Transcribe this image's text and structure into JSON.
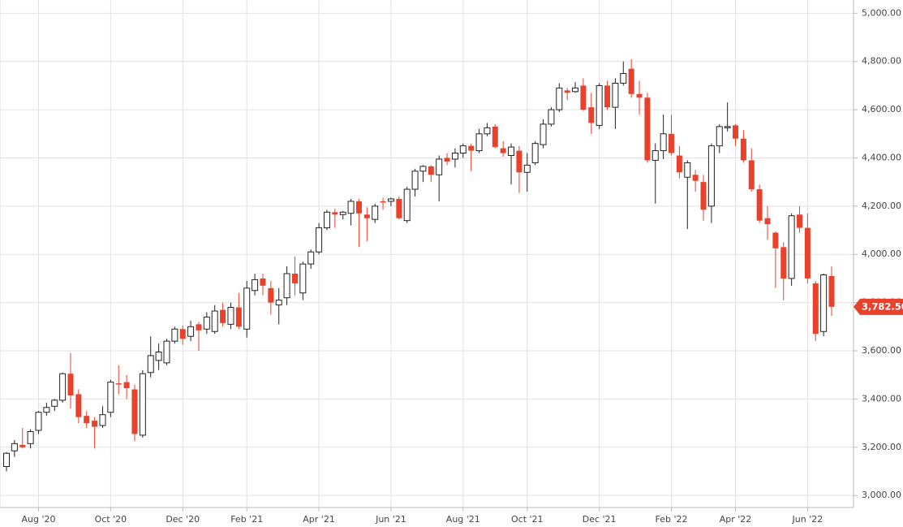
{
  "chart_data": {
    "type": "candlestick",
    "categories": [
      null,
      null,
      null,
      null,
      "Aug '20",
      null,
      null,
      null,
      null,
      null,
      null,
      null,
      null,
      "Oct '20",
      null,
      null,
      null,
      null,
      null,
      null,
      null,
      null,
      "Dec '20",
      null,
      null,
      null,
      null,
      null,
      null,
      null,
      "Feb '21",
      null,
      null,
      null,
      null,
      null,
      null,
      null,
      null,
      "Apr '21",
      null,
      null,
      null,
      null,
      null,
      null,
      null,
      null,
      "Jun '21",
      null,
      null,
      null,
      null,
      null,
      null,
      null,
      null,
      "Aug '21",
      null,
      null,
      null,
      null,
      null,
      null,
      null,
      "Oct '21",
      null,
      null,
      null,
      null,
      null,
      null,
      null,
      null,
      "Dec '21",
      null,
      null,
      null,
      null,
      null,
      null,
      null,
      null,
      "Feb '22",
      null,
      null,
      null,
      null,
      null,
      null,
      null,
      "Apr '22",
      null,
      null,
      null,
      null,
      null,
      null,
      null,
      null,
      "Jun '22",
      null,
      null,
      null
    ],
    "open": [
      3120,
      3185,
      3210,
      3215,
      3270,
      3345,
      3370,
      3395,
      3505,
      3420,
      3330,
      3310,
      3290,
      3345,
      3465,
      3470,
      3440,
      3250,
      3510,
      3560,
      3550,
      3640,
      3690,
      3660,
      3710,
      3690,
      3680,
      3770,
      3710,
      3780,
      3690,
      3850,
      3900,
      3860,
      3790,
      3820,
      3920,
      3840,
      3960,
      4010,
      4110,
      4175,
      4165,
      4170,
      4220,
      4165,
      4145,
      4220,
      4220,
      4230,
      4140,
      4270,
      4345,
      4365,
      4330,
      4400,
      4395,
      4420,
      4450,
      4430,
      4500,
      4530,
      4440,
      4410,
      4430,
      4340,
      4380,
      4455,
      4540,
      4600,
      4680,
      4675,
      4700,
      4610,
      4535,
      4700,
      4610,
      4710,
      4770,
      4665,
      4650,
      4390,
      4430,
      4500,
      4410,
      4320,
      4330,
      4300,
      4200,
      4450,
      4525,
      4535,
      4480,
      4390,
      4270,
      4150,
      4090,
      4030,
      3900,
      4165,
      4110,
      3880,
      3680,
      3910
    ],
    "high": [
      3180,
      3230,
      3280,
      3275,
      3350,
      3385,
      3400,
      3510,
      3590,
      3440,
      3350,
      3325,
      3370,
      3480,
      3540,
      3500,
      3460,
      3520,
      3660,
      3630,
      3650,
      3700,
      3705,
      3725,
      3720,
      3760,
      3790,
      3800,
      3800,
      3840,
      3890,
      3920,
      3920,
      3890,
      3860,
      3950,
      3990,
      3970,
      4020,
      4130,
      4185,
      4190,
      4180,
      4230,
      4230,
      4195,
      4210,
      4235,
      4235,
      4240,
      4280,
      4355,
      4370,
      4370,
      4410,
      4420,
      4440,
      4460,
      4460,
      4520,
      4545,
      4540,
      4470,
      4460,
      4450,
      4420,
      4470,
      4560,
      4610,
      4710,
      4690,
      4715,
      4730,
      4670,
      4710,
      4720,
      4730,
      4800,
      4810,
      4720,
      4670,
      4460,
      4580,
      4580,
      4450,
      4390,
      4350,
      4330,
      4460,
      4540,
      4630,
      4540,
      4515,
      4440,
      4290,
      4200,
      4095,
      4050,
      4170,
      4200,
      4170,
      3890,
      3920,
      3950
    ],
    "low": [
      3100,
      3160,
      3195,
      3195,
      3255,
      3330,
      3350,
      3385,
      3360,
      3300,
      3280,
      3195,
      3280,
      3325,
      3420,
      3400,
      3225,
      3240,
      3490,
      3520,
      3540,
      3630,
      3625,
      3640,
      3600,
      3670,
      3670,
      3700,
      3690,
      3690,
      3655,
      3830,
      3830,
      3750,
      3710,
      3790,
      3830,
      3810,
      3940,
      4000,
      4100,
      4110,
      4145,
      4120,
      4030,
      4055,
      4130,
      4185,
      4200,
      4145,
      4130,
      4240,
      4300,
      4300,
      4220,
      4370,
      4360,
      4400,
      4345,
      4420,
      4490,
      4440,
      4405,
      4290,
      4255,
      4260,
      4370,
      4440,
      4530,
      4590,
      4640,
      4670,
      4595,
      4500,
      4520,
      4600,
      4520,
      4700,
      4650,
      4580,
      4380,
      4210,
      4395,
      4410,
      4315,
      4105,
      4260,
      4140,
      4130,
      4420,
      4510,
      4450,
      4380,
      4260,
      4130,
      4060,
      3860,
      3810,
      3870,
      4090,
      3880,
      3640,
      3660,
      3745
    ],
    "close": [
      3175,
      3215,
      3200,
      3265,
      3345,
      3365,
      3395,
      3505,
      3415,
      3325,
      3300,
      3285,
      3335,
      3470,
      3460,
      3445,
      3255,
      3505,
      3580,
      3595,
      3640,
      3690,
      3650,
      3700,
      3685,
      3740,
      3765,
      3715,
      3780,
      3700,
      3860,
      3895,
      3870,
      3800,
      3810,
      3920,
      3880,
      3960,
      4010,
      4110,
      4175,
      4165,
      4175,
      4220,
      4170,
      4150,
      4200,
      4215,
      4230,
      4150,
      4270,
      4345,
      4365,
      4330,
      4395,
      4385,
      4420,
      4450,
      4430,
      4500,
      4525,
      4445,
      4420,
      4445,
      4340,
      4370,
      4460,
      4540,
      4600,
      4690,
      4670,
      4690,
      4600,
      4545,
      4700,
      4610,
      4710,
      4750,
      4665,
      4650,
      4390,
      4430,
      4500,
      4420,
      4340,
      4380,
      4305,
      4185,
      4450,
      4530,
      4530,
      4480,
      4390,
      4270,
      4140,
      4125,
      4025,
      3900,
      4160,
      4110,
      3900,
      3670,
      3915,
      3782.5
    ],
    "last_close_label": "3,782.50",
    "up_color": "#ffffff",
    "down_color": "#e8412c",
    "ylim": [
      2950,
      5055
    ],
    "yticks": [
      {
        "value": 3000,
        "label": "3,000.00"
      },
      {
        "value": 3200,
        "label": "3,200.00"
      },
      {
        "value": 3400,
        "label": "3,400.00"
      },
      {
        "value": 3600,
        "label": "3,600.00"
      },
      {
        "value": 3800,
        "label": "3,800.00"
      },
      {
        "value": 4000,
        "label": "4,000.00"
      },
      {
        "value": 4200,
        "label": "4,200.00"
      },
      {
        "value": 4400,
        "label": "4,400.00"
      },
      {
        "value": 4600,
        "label": "4,600.00"
      },
      {
        "value": 4800,
        "label": "4,800.00"
      },
      {
        "value": 5000,
        "label": "5,000.00"
      }
    ],
    "grid": true
  }
}
